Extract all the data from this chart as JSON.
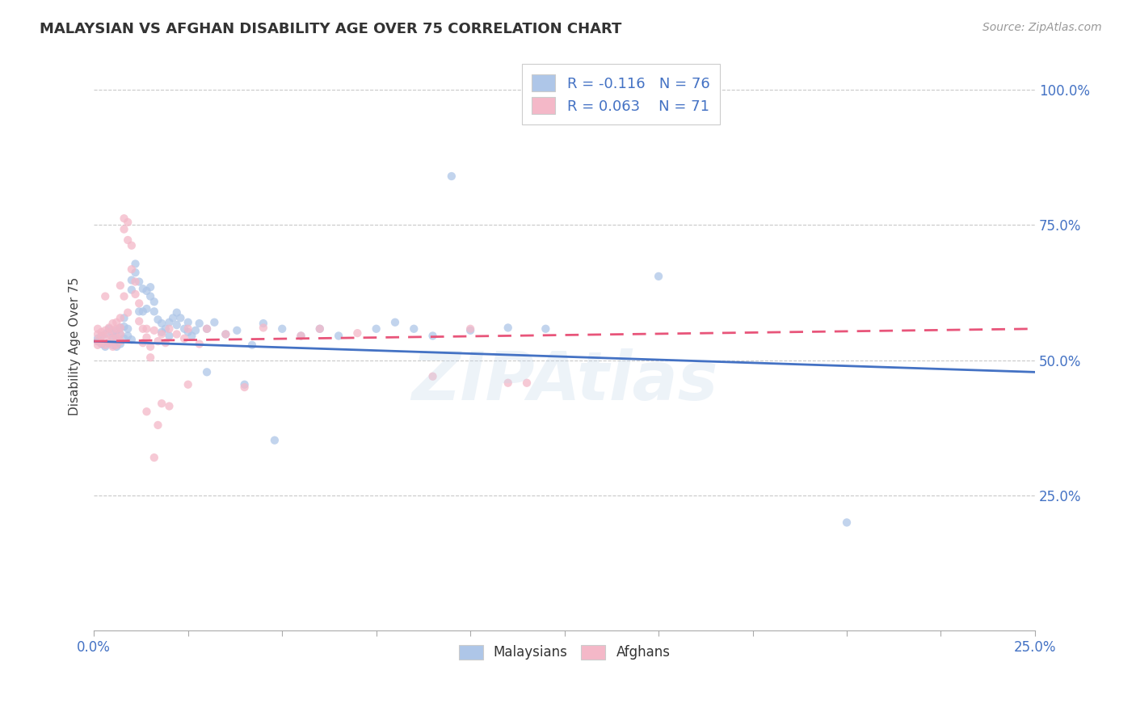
{
  "title": "MALAYSIAN VS AFGHAN DISABILITY AGE OVER 75 CORRELATION CHART",
  "source": "Source: ZipAtlas.com",
  "ylabel": "Disability Age Over 75",
  "xmin": 0.0,
  "xmax": 0.25,
  "ymin": 0.0,
  "ymax": 1.05,
  "ytick_positions": [
    0.25,
    0.5,
    0.75,
    1.0
  ],
  "ytick_labels": [
    "25.0%",
    "50.0%",
    "75.0%",
    "100.0%"
  ],
  "xtick_positions": [
    0.0,
    0.025,
    0.05,
    0.075,
    0.1,
    0.125,
    0.15,
    0.175,
    0.2,
    0.225,
    0.25
  ],
  "xtick_label_start": "0.0%",
  "xtick_label_end": "25.0%",
  "malaysian_R": -0.116,
  "malaysian_N": 76,
  "afghan_R": 0.063,
  "afghan_N": 71,
  "malaysian_color": "#aec6e8",
  "afghan_color": "#f4b8c8",
  "trendline_malaysian_color": "#4472c4",
  "trendline_afghan_color": "#e8557a",
  "background_color": "#ffffff",
  "grid_color": "#bbbbbb",
  "malaysian_trend_y0": 0.535,
  "malaysian_trend_y1": 0.478,
  "afghan_trend_y0": 0.535,
  "afghan_trend_y1": 0.558,
  "malaysian_scatter": [
    [
      0.001,
      0.535
    ],
    [
      0.001,
      0.54
    ],
    [
      0.002,
      0.53
    ],
    [
      0.002,
      0.545
    ],
    [
      0.003,
      0.525
    ],
    [
      0.003,
      0.548
    ],
    [
      0.004,
      0.532
    ],
    [
      0.004,
      0.558
    ],
    [
      0.005,
      0.528
    ],
    [
      0.005,
      0.542
    ],
    [
      0.005,
      0.55
    ],
    [
      0.006,
      0.536
    ],
    [
      0.006,
      0.555
    ],
    [
      0.006,
      0.525
    ],
    [
      0.007,
      0.53
    ],
    [
      0.007,
      0.548
    ],
    [
      0.007,
      0.56
    ],
    [
      0.008,
      0.578
    ],
    [
      0.008,
      0.562
    ],
    [
      0.008,
      0.54
    ],
    [
      0.009,
      0.558
    ],
    [
      0.009,
      0.545
    ],
    [
      0.01,
      0.538
    ],
    [
      0.01,
      0.63
    ],
    [
      0.01,
      0.648
    ],
    [
      0.011,
      0.662
    ],
    [
      0.011,
      0.678
    ],
    [
      0.012,
      0.59
    ],
    [
      0.012,
      0.645
    ],
    [
      0.013,
      0.59
    ],
    [
      0.013,
      0.632
    ],
    [
      0.014,
      0.595
    ],
    [
      0.014,
      0.628
    ],
    [
      0.015,
      0.618
    ],
    [
      0.015,
      0.635
    ],
    [
      0.016,
      0.608
    ],
    [
      0.016,
      0.59
    ],
    [
      0.017,
      0.575
    ],
    [
      0.018,
      0.568
    ],
    [
      0.018,
      0.552
    ],
    [
      0.019,
      0.558
    ],
    [
      0.02,
      0.545
    ],
    [
      0.02,
      0.57
    ],
    [
      0.021,
      0.578
    ],
    [
      0.022,
      0.588
    ],
    [
      0.022,
      0.565
    ],
    [
      0.023,
      0.578
    ],
    [
      0.024,
      0.558
    ],
    [
      0.025,
      0.57
    ],
    [
      0.025,
      0.552
    ],
    [
      0.026,
      0.545
    ],
    [
      0.027,
      0.555
    ],
    [
      0.028,
      0.568
    ],
    [
      0.03,
      0.478
    ],
    [
      0.03,
      0.558
    ],
    [
      0.032,
      0.57
    ],
    [
      0.035,
      0.548
    ],
    [
      0.038,
      0.555
    ],
    [
      0.04,
      0.455
    ],
    [
      0.042,
      0.528
    ],
    [
      0.045,
      0.568
    ],
    [
      0.048,
      0.352
    ],
    [
      0.05,
      0.558
    ],
    [
      0.055,
      0.545
    ],
    [
      0.06,
      0.558
    ],
    [
      0.065,
      0.545
    ],
    [
      0.075,
      0.558
    ],
    [
      0.08,
      0.57
    ],
    [
      0.085,
      0.558
    ],
    [
      0.09,
      0.545
    ],
    [
      0.095,
      0.84
    ],
    [
      0.1,
      0.555
    ],
    [
      0.11,
      0.56
    ],
    [
      0.12,
      0.558
    ],
    [
      0.15,
      0.655
    ],
    [
      0.2,
      0.2
    ]
  ],
  "afghan_scatter": [
    [
      0.001,
      0.535
    ],
    [
      0.001,
      0.528
    ],
    [
      0.001,
      0.548
    ],
    [
      0.001,
      0.558
    ],
    [
      0.002,
      0.532
    ],
    [
      0.002,
      0.545
    ],
    [
      0.002,
      0.552
    ],
    [
      0.003,
      0.528
    ],
    [
      0.003,
      0.54
    ],
    [
      0.003,
      0.555
    ],
    [
      0.003,
      0.618
    ],
    [
      0.004,
      0.532
    ],
    [
      0.004,
      0.548
    ],
    [
      0.004,
      0.56
    ],
    [
      0.005,
      0.525
    ],
    [
      0.005,
      0.54
    ],
    [
      0.005,
      0.555
    ],
    [
      0.005,
      0.568
    ],
    [
      0.006,
      0.528
    ],
    [
      0.006,
      0.542
    ],
    [
      0.006,
      0.558
    ],
    [
      0.006,
      0.57
    ],
    [
      0.007,
      0.535
    ],
    [
      0.007,
      0.548
    ],
    [
      0.007,
      0.56
    ],
    [
      0.007,
      0.578
    ],
    [
      0.007,
      0.638
    ],
    [
      0.008,
      0.742
    ],
    [
      0.008,
      0.762
    ],
    [
      0.008,
      0.618
    ],
    [
      0.009,
      0.755
    ],
    [
      0.009,
      0.722
    ],
    [
      0.009,
      0.588
    ],
    [
      0.01,
      0.712
    ],
    [
      0.01,
      0.668
    ],
    [
      0.011,
      0.645
    ],
    [
      0.011,
      0.622
    ],
    [
      0.012,
      0.605
    ],
    [
      0.012,
      0.572
    ],
    [
      0.013,
      0.558
    ],
    [
      0.013,
      0.532
    ],
    [
      0.014,
      0.558
    ],
    [
      0.014,
      0.542
    ],
    [
      0.014,
      0.405
    ],
    [
      0.015,
      0.525
    ],
    [
      0.015,
      0.505
    ],
    [
      0.016,
      0.32
    ],
    [
      0.016,
      0.555
    ],
    [
      0.017,
      0.535
    ],
    [
      0.017,
      0.38
    ],
    [
      0.018,
      0.548
    ],
    [
      0.018,
      0.42
    ],
    [
      0.019,
      0.532
    ],
    [
      0.02,
      0.558
    ],
    [
      0.02,
      0.415
    ],
    [
      0.022,
      0.548
    ],
    [
      0.024,
      0.54
    ],
    [
      0.025,
      0.455
    ],
    [
      0.025,
      0.558
    ],
    [
      0.028,
      0.53
    ],
    [
      0.03,
      0.558
    ],
    [
      0.035,
      0.548
    ],
    [
      0.04,
      0.45
    ],
    [
      0.045,
      0.56
    ],
    [
      0.055,
      0.545
    ],
    [
      0.06,
      0.558
    ],
    [
      0.07,
      0.55
    ],
    [
      0.09,
      0.47
    ],
    [
      0.1,
      0.558
    ],
    [
      0.11,
      0.458
    ],
    [
      0.115,
      0.458
    ]
  ]
}
